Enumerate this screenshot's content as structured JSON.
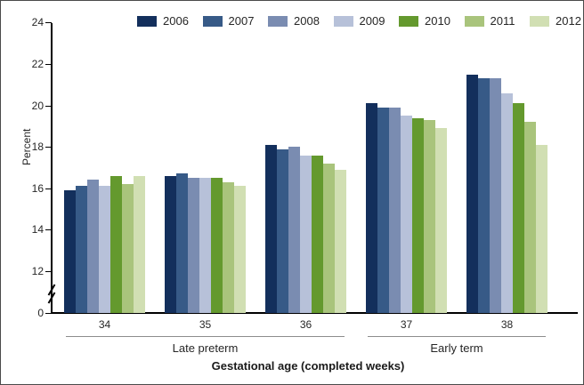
{
  "chart_data": {
    "type": "bar",
    "title": "",
    "xlabel": "Gestational age (completed weeks)",
    "ylabel": "Percent",
    "categories": [
      "34",
      "35",
      "36",
      "37",
      "38"
    ],
    "category_groups": [
      {
        "label": "Late preterm",
        "from": "34",
        "to": "36"
      },
      {
        "label": "Early term",
        "from": "37",
        "to": "38"
      }
    ],
    "y_ticks": [
      0,
      12,
      14,
      16,
      18,
      20,
      22,
      24
    ],
    "ylim": [
      0,
      24
    ],
    "axis_break_between": [
      0,
      12
    ],
    "legend_position": "top",
    "grid": false,
    "series": [
      {
        "name": "2006",
        "color": "#132f5c",
        "values": [
          15.9,
          16.6,
          18.1,
          20.1,
          21.5
        ]
      },
      {
        "name": "2007",
        "color": "#375a87",
        "values": [
          16.1,
          16.7,
          17.9,
          19.9,
          21.3
        ]
      },
      {
        "name": "2008",
        "color": "#7a8cb1",
        "values": [
          16.4,
          16.5,
          18.0,
          19.9,
          21.3
        ]
      },
      {
        "name": "2009",
        "color": "#b7c1d9",
        "values": [
          16.1,
          16.5,
          17.6,
          19.5,
          20.6
        ]
      },
      {
        "name": "2010",
        "color": "#64992e",
        "values": [
          16.6,
          16.5,
          17.6,
          19.4,
          20.1
        ]
      },
      {
        "name": "2011",
        "color": "#a9c47c",
        "values": [
          16.2,
          16.3,
          17.2,
          19.3,
          19.2
        ]
      },
      {
        "name": "2012",
        "color": "#d1dfb3",
        "values": [
          16.6,
          16.1,
          16.9,
          18.9,
          18.1
        ]
      }
    ]
  }
}
